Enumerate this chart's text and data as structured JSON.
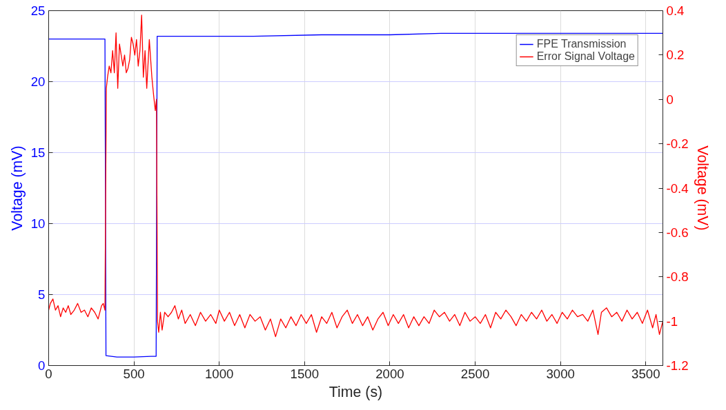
{
  "chart_data": {
    "type": "line",
    "xlabel": "Time (s)",
    "ylabel": "Voltage (mV)",
    "y2label": "Voltage (mV)",
    "xlim": [
      0,
      3600
    ],
    "xticks": [
      0,
      500,
      1000,
      1500,
      2000,
      2500,
      3000,
      3500
    ],
    "ylim": [
      0,
      25
    ],
    "yticks": [
      0,
      5,
      10,
      15,
      20,
      25
    ],
    "y2lim": [
      -1.2,
      0.4
    ],
    "y2ticks": [
      -1.2,
      -1,
      -0.8,
      -0.6,
      -0.4,
      -0.2,
      0,
      0.2,
      0.4
    ],
    "grid": true,
    "legend": "top right",
    "marker": "none",
    "line_style": "solid",
    "series": [
      {
        "name": "FPE Transmission",
        "color": "#0000ff",
        "x": [
          0,
          100,
          200,
          300,
          330,
          336,
          400,
          500,
          600,
          630,
          636,
          800,
          1200,
          1600,
          2000,
          2300,
          2800,
          3200,
          3600
        ],
        "values": [
          23.0,
          23.0,
          23.0,
          23.0,
          23.0,
          0.7,
          0.6,
          0.6,
          0.65,
          0.65,
          23.2,
          23.2,
          23.2,
          23.3,
          23.3,
          23.4,
          23.4,
          23.4,
          23.4
        ]
      },
      {
        "name": "Error Signal Voltage",
        "color": "#ff0000",
        "axis": "y2",
        "x": [
          0,
          10,
          25,
          40,
          55,
          70,
          85,
          100,
          115,
          130,
          150,
          170,
          190,
          210,
          230,
          250,
          270,
          290,
          310,
          320,
          330,
          338,
          345,
          355,
          365,
          375,
          385,
          395,
          405,
          415,
          425,
          435,
          445,
          455,
          465,
          475,
          485,
          495,
          505,
          515,
          525,
          535,
          545,
          555,
          565,
          575,
          590,
          605,
          615,
          625,
          632,
          638,
          645,
          655,
          665,
          680,
          700,
          720,
          740,
          760,
          780,
          800,
          830,
          860,
          890,
          920,
          950,
          980,
          1000,
          1030,
          1060,
          1090,
          1120,
          1150,
          1180,
          1210,
          1240,
          1270,
          1300,
          1330,
          1360,
          1390,
          1420,
          1450,
          1480,
          1510,
          1540,
          1570,
          1600,
          1630,
          1660,
          1690,
          1720,
          1750,
          1780,
          1810,
          1840,
          1870,
          1900,
          1930,
          1960,
          1990,
          2020,
          2050,
          2080,
          2110,
          2140,
          2170,
          2200,
          2230,
          2260,
          2290,
          2320,
          2350,
          2380,
          2410,
          2440,
          2470,
          2500,
          2530,
          2560,
          2590,
          2620,
          2650,
          2680,
          2710,
          2740,
          2770,
          2800,
          2830,
          2860,
          2890,
          2920,
          2950,
          2980,
          3010,
          3040,
          3070,
          3100,
          3130,
          3160,
          3190,
          3220,
          3240,
          3270,
          3300,
          3330,
          3360,
          3390,
          3420,
          3450,
          3480,
          3510,
          3540,
          3560,
          3580,
          3600
        ],
        "values": [
          -0.95,
          -0.92,
          -0.9,
          -0.95,
          -0.93,
          -0.98,
          -0.94,
          -0.96,
          -0.93,
          -0.97,
          -0.95,
          -0.92,
          -0.96,
          -0.95,
          -0.98,
          -0.94,
          -0.96,
          -0.99,
          -0.93,
          -0.92,
          -0.95,
          0.05,
          0.1,
          0.15,
          0.12,
          0.22,
          0.12,
          0.3,
          0.05,
          0.25,
          0.2,
          0.15,
          0.2,
          0.12,
          0.14,
          0.18,
          0.28,
          0.25,
          0.2,
          0.27,
          0.15,
          0.22,
          0.38,
          0.1,
          0.22,
          0.05,
          0.27,
          0.1,
          0.02,
          -0.05,
          0.0,
          -1.0,
          -1.05,
          -0.96,
          -1.04,
          -0.96,
          -0.98,
          -0.96,
          -0.93,
          -0.99,
          -0.95,
          -1.01,
          -0.97,
          -1.02,
          -0.96,
          -1.0,
          -0.97,
          -1.01,
          -0.95,
          -1.0,
          -0.96,
          -1.02,
          -0.97,
          -1.03,
          -0.97,
          -1.0,
          -0.98,
          -1.04,
          -0.99,
          -1.07,
          -0.99,
          -1.03,
          -0.98,
          -1.02,
          -0.97,
          -1.01,
          -0.97,
          -1.05,
          -0.98,
          -1.01,
          -0.96,
          -1.03,
          -0.98,
          -0.95,
          -1.01,
          -0.97,
          -1.02,
          -0.98,
          -1.04,
          -0.99,
          -0.96,
          -1.02,
          -0.97,
          -1.01,
          -0.97,
          -1.03,
          -0.98,
          -1.02,
          -0.98,
          -1.01,
          -0.95,
          -0.98,
          -0.96,
          -1.0,
          -0.97,
          -1.02,
          -0.96,
          -1.0,
          -0.98,
          -1.01,
          -0.97,
          -1.03,
          -0.96,
          -0.99,
          -0.95,
          -0.98,
          -1.02,
          -0.97,
          -1.0,
          -0.96,
          -0.99,
          -0.95,
          -1.0,
          -0.97,
          -1.01,
          -0.96,
          -0.99,
          -0.95,
          -0.98,
          -0.97,
          -1.0,
          -0.95,
          -1.06,
          -0.96,
          -0.94,
          -0.98,
          -0.96,
          -1.0,
          -0.95,
          -0.99,
          -0.96,
          -1.01,
          -0.95,
          -1.03,
          -0.97,
          -1.06,
          -1.0
        ]
      }
    ]
  }
}
